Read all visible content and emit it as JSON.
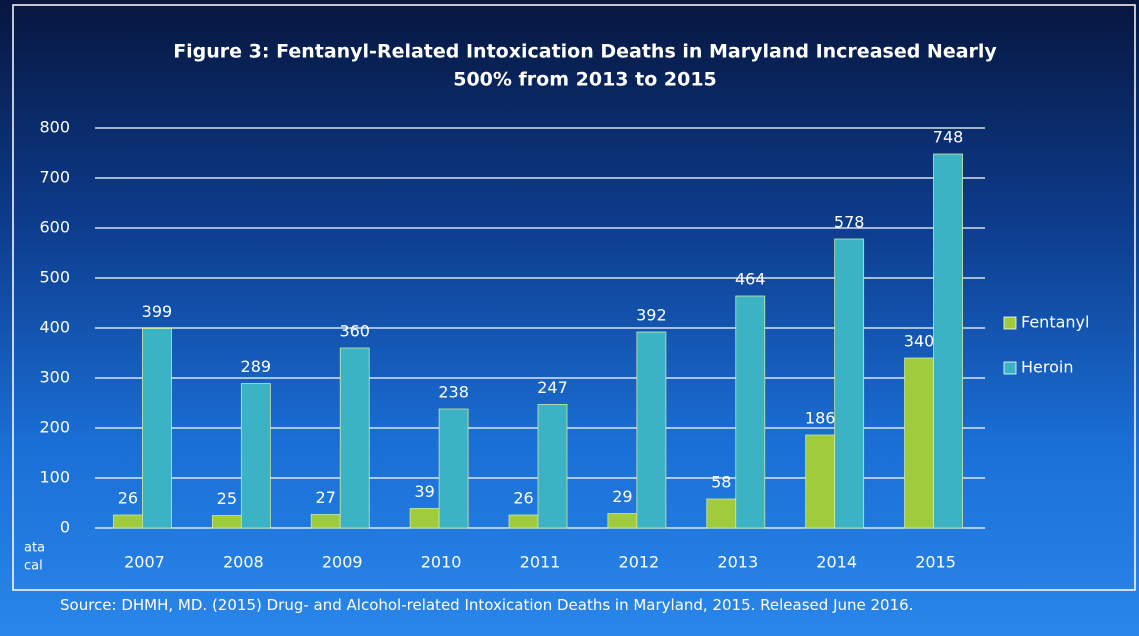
{
  "chart_data": {
    "type": "bar",
    "title": [
      "Figure 3: Fentanyl-Related Intoxication Deaths in Maryland Increased Nearly",
      "500% from 2013 to 2015"
    ],
    "categories": [
      "2007",
      "2008",
      "2009",
      "2010",
      "2011",
      "2012",
      "2013",
      "2014",
      "2015"
    ],
    "series": [
      {
        "name": "Fentanyl",
        "color": "#9fcb3c",
        "values": [
          26,
          25,
          27,
          39,
          26,
          29,
          58,
          186,
          340
        ]
      },
      {
        "name": "Heroin",
        "color": "#3cb3c4",
        "values": [
          399,
          289,
          360,
          238,
          247,
          392,
          464,
          578,
          748
        ]
      }
    ],
    "ylim": [
      0,
      800
    ],
    "yticks": [
      0,
      100,
      200,
      300,
      400,
      500,
      600,
      700,
      800
    ],
    "grid": true,
    "legend": "right",
    "source": "Source: DHMH, MD. (2015) Drug- and Alcohol-related Intoxication Deaths in Maryland, 2015. Released June 2016.",
    "clipped_text": [
      "ata",
      "cal"
    ]
  }
}
